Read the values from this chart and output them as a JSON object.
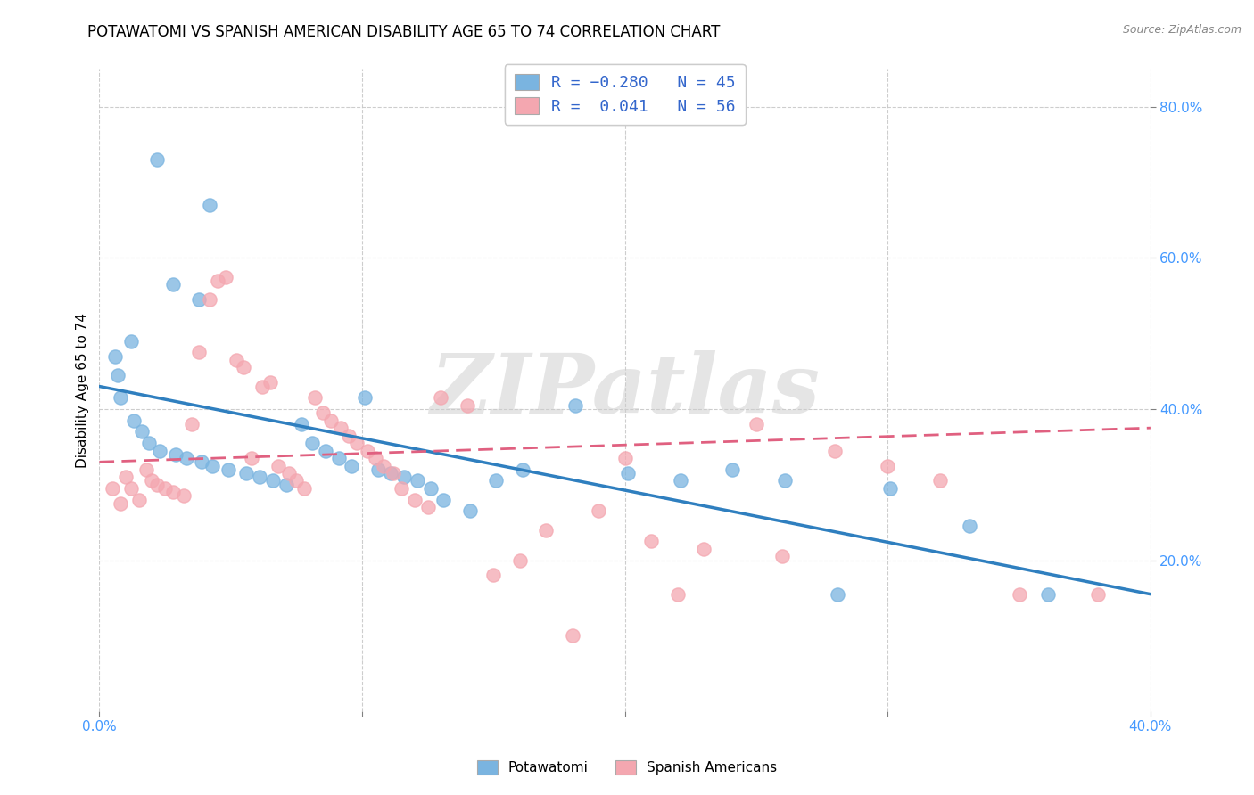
{
  "title": "POTAWATOMI VS SPANISH AMERICAN DISABILITY AGE 65 TO 74 CORRELATION CHART",
  "source": "Source: ZipAtlas.com",
  "ylabel": "Disability Age 65 to 74",
  "x_min": 0.0,
  "x_max": 0.4,
  "y_min": 0.0,
  "y_max": 0.85,
  "x_tick_labels_bottom": [
    "0.0%",
    "",
    "",
    "",
    "40.0%"
  ],
  "x_tick_vals": [
    0.0,
    0.1,
    0.2,
    0.3,
    0.4
  ],
  "y_tick_labels": [
    "20.0%",
    "40.0%",
    "60.0%",
    "80.0%"
  ],
  "y_tick_vals": [
    0.2,
    0.4,
    0.6,
    0.8
  ],
  "legend_r1": "R = -0.280   N = 45",
  "legend_r2": "R =  0.041   N = 56",
  "blue_scatter_x": [
    0.022,
    0.042,
    0.028,
    0.038,
    0.012,
    0.006,
    0.007,
    0.008,
    0.013,
    0.016,
    0.019,
    0.023,
    0.029,
    0.033,
    0.039,
    0.043,
    0.049,
    0.056,
    0.061,
    0.066,
    0.071,
    0.077,
    0.081,
    0.086,
    0.091,
    0.096,
    0.101,
    0.106,
    0.111,
    0.116,
    0.121,
    0.126,
    0.131,
    0.141,
    0.151,
    0.161,
    0.181,
    0.201,
    0.221,
    0.241,
    0.261,
    0.281,
    0.301,
    0.331,
    0.361
  ],
  "blue_scatter_y": [
    0.73,
    0.67,
    0.565,
    0.545,
    0.49,
    0.47,
    0.445,
    0.415,
    0.385,
    0.37,
    0.355,
    0.345,
    0.34,
    0.335,
    0.33,
    0.325,
    0.32,
    0.315,
    0.31,
    0.305,
    0.3,
    0.38,
    0.355,
    0.345,
    0.335,
    0.325,
    0.415,
    0.32,
    0.315,
    0.31,
    0.305,
    0.295,
    0.28,
    0.265,
    0.305,
    0.32,
    0.405,
    0.315,
    0.305,
    0.32,
    0.305,
    0.155,
    0.295,
    0.245,
    0.155
  ],
  "pink_scatter_x": [
    0.005,
    0.008,
    0.01,
    0.012,
    0.015,
    0.018,
    0.02,
    0.022,
    0.025,
    0.028,
    0.032,
    0.035,
    0.038,
    0.042,
    0.045,
    0.048,
    0.052,
    0.055,
    0.058,
    0.062,
    0.065,
    0.068,
    0.072,
    0.075,
    0.078,
    0.082,
    0.085,
    0.088,
    0.092,
    0.095,
    0.098,
    0.102,
    0.105,
    0.108,
    0.112,
    0.115,
    0.12,
    0.125,
    0.13,
    0.14,
    0.15,
    0.16,
    0.18,
    0.2,
    0.22,
    0.25,
    0.28,
    0.3,
    0.32,
    0.35,
    0.17,
    0.19,
    0.21,
    0.23,
    0.26,
    0.38
  ],
  "pink_scatter_y": [
    0.295,
    0.275,
    0.31,
    0.295,
    0.28,
    0.32,
    0.305,
    0.3,
    0.295,
    0.29,
    0.285,
    0.38,
    0.475,
    0.545,
    0.57,
    0.575,
    0.465,
    0.455,
    0.335,
    0.43,
    0.435,
    0.325,
    0.315,
    0.305,
    0.295,
    0.415,
    0.395,
    0.385,
    0.375,
    0.365,
    0.355,
    0.345,
    0.335,
    0.325,
    0.315,
    0.295,
    0.28,
    0.27,
    0.415,
    0.405,
    0.18,
    0.2,
    0.1,
    0.335,
    0.155,
    0.38,
    0.345,
    0.325,
    0.305,
    0.155,
    0.24,
    0.265,
    0.225,
    0.215,
    0.205,
    0.155
  ],
  "blue_line_x": [
    0.0,
    0.4
  ],
  "blue_line_y": [
    0.43,
    0.155
  ],
  "pink_line_x": [
    0.0,
    0.4
  ],
  "pink_line_y": [
    0.33,
    0.375
  ],
  "scatter_size": 120,
  "blue_color": "#7ab4e0",
  "pink_color": "#f4a7b0",
  "blue_line_color": "#2f7fbf",
  "pink_line_color": "#e06080",
  "grid_color": "#c8c8c8",
  "background_color": "#ffffff",
  "watermark_text": "ZIPatlas",
  "title_fontsize": 12,
  "axis_label_fontsize": 11,
  "tick_fontsize": 11,
  "legend_fontsize": 13
}
